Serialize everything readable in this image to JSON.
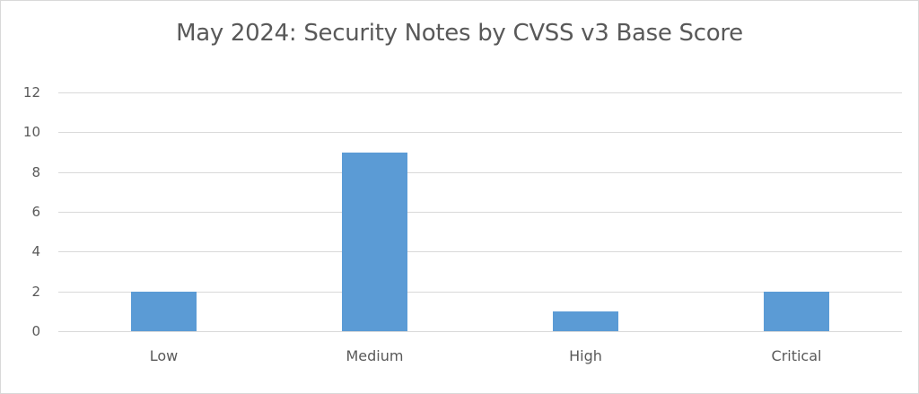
{
  "chart_data": {
    "type": "bar",
    "title": "May 2024: Security Notes by CVSS v3 Base Score",
    "xlabel": "",
    "ylabel": "",
    "categories": [
      "Low",
      "Medium",
      "High",
      "Critical"
    ],
    "values": [
      2,
      9,
      1,
      2
    ],
    "ylim": [
      0,
      12
    ],
    "yticks": [
      0,
      2,
      4,
      6,
      8,
      10,
      12
    ],
    "grid": true,
    "legend": null,
    "bar_color": "#5b9bd5"
  }
}
